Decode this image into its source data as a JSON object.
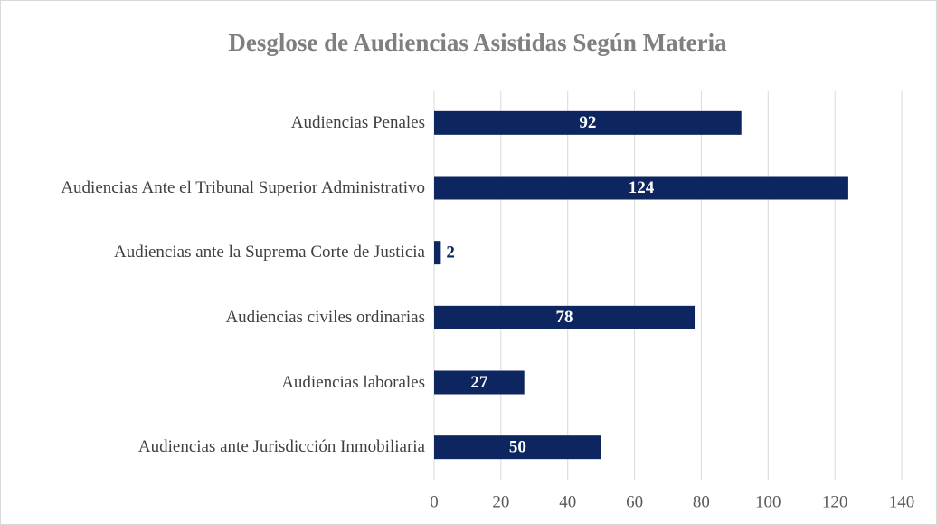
{
  "chart_data": {
    "type": "bar",
    "orientation": "horizontal",
    "title": "Desglose de Audiencias Asistidas Según Materia",
    "categories": [
      "Audiencias Penales",
      "Audiencias Ante el Tribunal Superior Administrativo",
      "Audiencias ante la Suprema Corte de Justicia",
      "Audiencias civiles ordinarias",
      "Audiencias laborales",
      "Audiencias ante Jurisdicción Inmobiliaria"
    ],
    "values": [
      92,
      124,
      2,
      78,
      27,
      50
    ],
    "color": "#0e2660",
    "xlim": [
      0,
      140
    ],
    "xticks": [
      0,
      20,
      40,
      60,
      80,
      100,
      120,
      140
    ],
    "grid": true
  }
}
